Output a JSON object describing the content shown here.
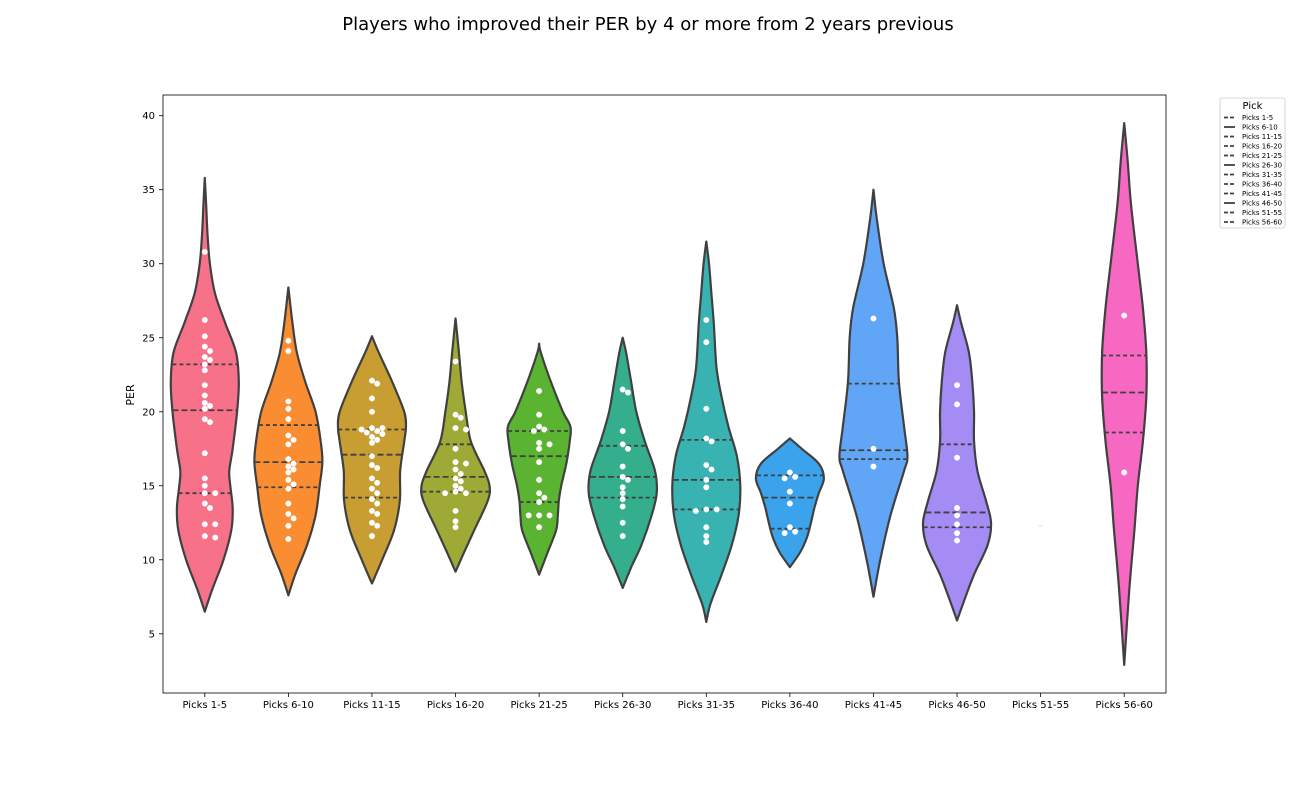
{
  "chart_data": {
    "type": "violin",
    "title": "Players who improved their PER by 4 or more from 2 years previous",
    "xlabel": "",
    "ylabel": "PER",
    "ylim": [
      1,
      41.4
    ],
    "yticks": [
      5,
      10,
      15,
      20,
      25,
      30,
      35,
      40
    ],
    "grid": false,
    "legend": {
      "title": "Pick",
      "placement": "top-right outside"
    },
    "categories": [
      {
        "name": "Picks 1-5",
        "color": "#f77189",
        "ymin": 6.5,
        "ymax": 35.8,
        "quartiles": [
          14.5,
          20.1,
          23.2
        ],
        "profile": [
          [
            6.5,
            0.0
          ],
          [
            8,
            0.22
          ],
          [
            10,
            0.55
          ],
          [
            12,
            0.78
          ],
          [
            13.5,
            0.82
          ],
          [
            15,
            0.75
          ],
          [
            16,
            0.72
          ],
          [
            17.5,
            0.82
          ],
          [
            20,
            0.95
          ],
          [
            22,
            1.0
          ],
          [
            24,
            0.92
          ],
          [
            26,
            0.6
          ],
          [
            28,
            0.3
          ],
          [
            30,
            0.15
          ],
          [
            32,
            0.08
          ],
          [
            34,
            0.04
          ],
          [
            35.8,
            0.0
          ]
        ],
        "points": [
          30.8,
          26.2,
          25.1,
          24.4,
          24.1,
          23.7,
          23.5,
          23.2,
          22.8,
          21.8,
          21.1,
          20.6,
          20.4,
          20.2,
          19.5,
          19.3,
          17.2,
          15.5,
          15.0,
          14.5,
          14.5,
          13.8,
          13.5,
          12.4,
          12.4,
          11.6,
          11.5
        ]
      },
      {
        "name": "Picks 6-10",
        "color": "#fa8c32",
        "ymin": 7.6,
        "ymax": 28.4,
        "quartiles": [
          14.9,
          16.6,
          19.1
        ],
        "profile": [
          [
            7.6,
            0.0
          ],
          [
            9,
            0.2
          ],
          [
            11,
            0.55
          ],
          [
            13,
            0.8
          ],
          [
            15,
            0.92
          ],
          [
            16.6,
            1.0
          ],
          [
            18,
            0.95
          ],
          [
            20,
            0.8
          ],
          [
            22,
            0.5
          ],
          [
            24,
            0.25
          ],
          [
            26,
            0.12
          ],
          [
            28.4,
            0.0
          ]
        ],
        "points": [
          24.8,
          24.1,
          20.7,
          20.2,
          19.5,
          18.4,
          18.1,
          17.8,
          16.8,
          16.5,
          16.3,
          16.1,
          15.9,
          15.4,
          15.1,
          14.8,
          13.8,
          13.1,
          12.8,
          12.3,
          11.4
        ]
      },
      {
        "name": "Picks 11-15",
        "color": "#c89d32",
        "ymin": 8.4,
        "ymax": 25.1,
        "quartiles": [
          14.2,
          17.1,
          18.8
        ],
        "profile": [
          [
            8.4,
            0.0
          ],
          [
            10,
            0.3
          ],
          [
            12,
            0.65
          ],
          [
            14,
            0.82
          ],
          [
            16,
            0.83
          ],
          [
            18,
            0.95
          ],
          [
            19,
            1.0
          ],
          [
            20,
            0.95
          ],
          [
            22,
            0.6
          ],
          [
            24,
            0.2
          ],
          [
            25.1,
            0.0
          ]
        ],
        "points": [
          22.1,
          21.9,
          20.9,
          20.0,
          18.9,
          18.9,
          18.8,
          18.7,
          18.6,
          18.5,
          18.3,
          18.1,
          17.9,
          17.0,
          16.4,
          16.2,
          15.5,
          15.2,
          14.8,
          14.5,
          14.1,
          13.8,
          13.3,
          13.1,
          12.5,
          12.3,
          11.6
        ]
      },
      {
        "name": "Picks 16-20",
        "color": "#9fa936",
        "ymin": 9.2,
        "ymax": 26.3,
        "quartiles": [
          14.6,
          15.6,
          17.8
        ],
        "profile": [
          [
            9.2,
            0.0
          ],
          [
            10.5,
            0.25
          ],
          [
            12,
            0.55
          ],
          [
            14,
            0.95
          ],
          [
            15,
            1.0
          ],
          [
            16,
            0.85
          ],
          [
            18,
            0.45
          ],
          [
            20,
            0.3
          ],
          [
            22,
            0.18
          ],
          [
            24,
            0.1
          ],
          [
            26.3,
            0.0
          ]
        ],
        "points": [
          23.4,
          19.8,
          19.6,
          18.9,
          18.8,
          17.5,
          16.6,
          16.5,
          16.1,
          15.8,
          15.5,
          15.3,
          15.0,
          14.8,
          14.6,
          14.5,
          14.5,
          13.3,
          12.6,
          12.2
        ]
      },
      {
        "name": "Picks 21-25",
        "color": "#5bb431",
        "ymin": 9.0,
        "ymax": 24.6,
        "quartiles": [
          13.9,
          17.0,
          18.7
        ],
        "profile": [
          [
            9.0,
            0.0
          ],
          [
            10.5,
            0.25
          ],
          [
            12,
            0.5
          ],
          [
            13,
            0.55
          ],
          [
            14,
            0.58
          ],
          [
            15,
            0.65
          ],
          [
            16.5,
            0.8
          ],
          [
            18,
            0.9
          ],
          [
            19,
            0.92
          ],
          [
            20,
            0.7
          ],
          [
            22,
            0.35
          ],
          [
            24,
            0.05
          ],
          [
            24.6,
            0.0
          ]
        ],
        "points": [
          21.4,
          19.8,
          19.0,
          18.8,
          18.7,
          17.9,
          17.8,
          17.5,
          16.6,
          15.4,
          14.5,
          14.2,
          13.9,
          13.0,
          13.0,
          13.0,
          12.2
        ]
      },
      {
        "name": "Picks 26-30",
        "color": "#35ae8e",
        "ymin": 8.1,
        "ymax": 25.0,
        "quartiles": [
          14.2,
          15.6,
          17.7
        ],
        "profile": [
          [
            8.1,
            0.0
          ],
          [
            9.5,
            0.25
          ],
          [
            11,
            0.55
          ],
          [
            13,
            0.85
          ],
          [
            14.5,
            1.0
          ],
          [
            16,
            0.95
          ],
          [
            18,
            0.65
          ],
          [
            20,
            0.4
          ],
          [
            22,
            0.25
          ],
          [
            24,
            0.1
          ],
          [
            25.0,
            0.0
          ]
        ],
        "points": [
          21.5,
          21.3,
          18.7,
          17.8,
          17.5,
          16.3,
          15.6,
          15.4,
          14.9,
          14.5,
          14.1,
          13.6,
          12.5,
          11.6
        ]
      },
      {
        "name": "Picks 31-35",
        "color": "#38b3b2",
        "ymin": 5.8,
        "ymax": 31.5,
        "quartiles": [
          13.4,
          15.4,
          18.1
        ],
        "profile": [
          [
            5.8,
            0.0
          ],
          [
            7,
            0.12
          ],
          [
            9,
            0.45
          ],
          [
            11,
            0.75
          ],
          [
            13,
            0.95
          ],
          [
            15,
            1.0
          ],
          [
            17,
            0.9
          ],
          [
            19,
            0.65
          ],
          [
            21,
            0.45
          ],
          [
            23,
            0.3
          ],
          [
            26,
            0.22
          ],
          [
            28,
            0.15
          ],
          [
            30,
            0.08
          ],
          [
            31.5,
            0.0
          ]
        ],
        "points": [
          26.2,
          24.7,
          20.2,
          18.2,
          18.0,
          16.4,
          16.1,
          15.4,
          14.9,
          13.4,
          13.4,
          13.3,
          12.2,
          11.6,
          11.2
        ]
      },
      {
        "name": "Picks 36-40",
        "color": "#3ba3ec",
        "ymin": 9.5,
        "ymax": 18.2,
        "quartiles": [
          12.1,
          14.2,
          15.7
        ],
        "profile": [
          [
            9.5,
            0.0
          ],
          [
            10.5,
            0.3
          ],
          [
            11.5,
            0.5
          ],
          [
            12.5,
            0.62
          ],
          [
            13.5,
            0.72
          ],
          [
            14.5,
            0.85
          ],
          [
            15.5,
            1.0
          ],
          [
            16.5,
            0.85
          ],
          [
            17.5,
            0.35
          ],
          [
            18.2,
            0.0
          ]
        ],
        "points": [
          15.9,
          15.6,
          15.5,
          14.6,
          13.8,
          12.2,
          11.9,
          11.8
        ]
      },
      {
        "name": "Picks 41-45",
        "color": "#61a6f6",
        "ymin": 7.5,
        "ymax": 35.0,
        "quartiles": [
          16.8,
          17.4,
          21.9
        ],
        "profile": [
          [
            7.5,
            0.0
          ],
          [
            10,
            0.2
          ],
          [
            13,
            0.5
          ],
          [
            16,
            0.9
          ],
          [
            17,
            1.0
          ],
          [
            19,
            0.9
          ],
          [
            22,
            0.75
          ],
          [
            25,
            0.7
          ],
          [
            27,
            0.6
          ],
          [
            30,
            0.3
          ],
          [
            33,
            0.1
          ],
          [
            35.0,
            0.0
          ]
        ],
        "points": [
          26.3,
          17.5,
          16.3
        ]
      },
      {
        "name": "Picks 46-50",
        "color": "#a48cf4",
        "ymin": 5.9,
        "ymax": 27.2,
        "quartiles": [
          12.2,
          13.2,
          17.8
        ],
        "profile": [
          [
            5.9,
            0.0
          ],
          [
            7.5,
            0.25
          ],
          [
            9,
            0.5
          ],
          [
            11,
            0.9
          ],
          [
            12.5,
            1.0
          ],
          [
            14,
            0.85
          ],
          [
            16,
            0.6
          ],
          [
            18,
            0.5
          ],
          [
            20,
            0.5
          ],
          [
            22,
            0.45
          ],
          [
            24,
            0.35
          ],
          [
            26,
            0.12
          ],
          [
            27.2,
            0.0
          ]
        ],
        "points": [
          21.8,
          20.5,
          16.9,
          13.5,
          13.0,
          12.4,
          11.8,
          11.3
        ]
      },
      {
        "name": "Picks 51-55",
        "color": "#e866f4",
        "ymin": 12.3,
        "ymax": 12.3,
        "quartiles": [
          12.3,
          12.3,
          12.3
        ],
        "profile": [
          [
            12.3,
            0.0
          ]
        ],
        "points": []
      },
      {
        "name": "Picks 56-60",
        "color": "#f668c2",
        "ymin": 2.9,
        "ymax": 39.5,
        "quartiles": [
          18.6,
          21.3,
          23.8
        ],
        "profile": [
          [
            2.9,
            0.0
          ],
          [
            8,
            0.15
          ],
          [
            12,
            0.3
          ],
          [
            15,
            0.4
          ],
          [
            18,
            0.55
          ],
          [
            21,
            0.65
          ],
          [
            24,
            0.65
          ],
          [
            27,
            0.55
          ],
          [
            30,
            0.4
          ],
          [
            34,
            0.2
          ],
          [
            37,
            0.1
          ],
          [
            39.5,
            0.0
          ]
        ],
        "points": [
          26.5,
          15.9
        ]
      }
    ]
  }
}
